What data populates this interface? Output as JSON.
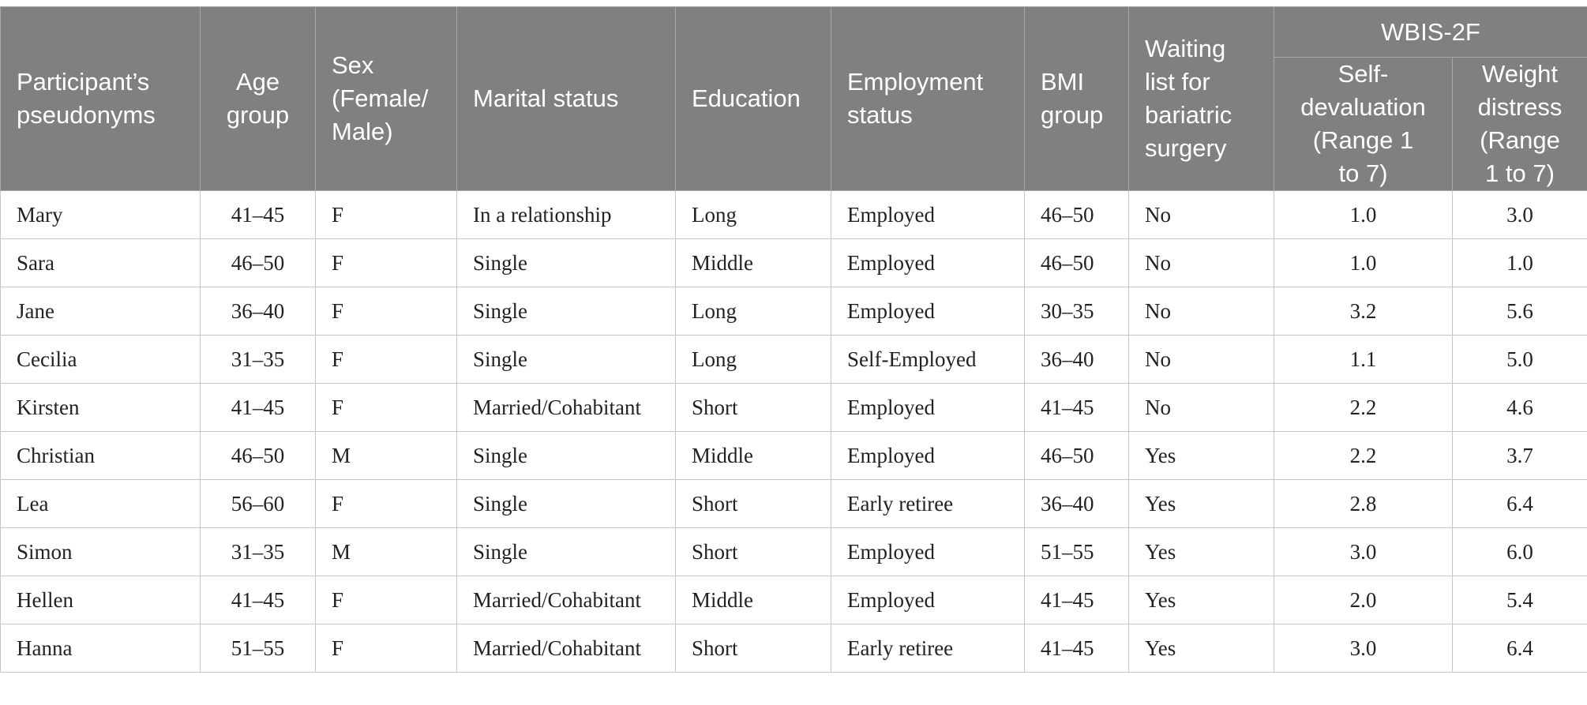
{
  "columns": {
    "pseudonym": "Participant’s pseudonyms",
    "age": "Age group",
    "sex": "Sex (Female/ Male)",
    "marital": "Marital status",
    "education": "Education",
    "employment": "Employment status",
    "bmi": "BMI group",
    "waiting": "Waiting list for bariatric surgery",
    "wbis_group": "WBIS-2F",
    "self_devaluation": "Self- devaluation (Range 1 to 7)",
    "weight_distress": "Weight distress (Range 1 to 7)"
  },
  "rows": [
    {
      "pseudonym": "Mary",
      "age": "41–45",
      "sex": "F",
      "marital": "In a relationship",
      "education": "Long",
      "employment": "Employed",
      "bmi": "46–50",
      "waiting": "No",
      "self_devaluation": "1.0",
      "weight_distress": "3.0"
    },
    {
      "pseudonym": "Sara",
      "age": "46–50",
      "sex": "F",
      "marital": "Single",
      "education": "Middle",
      "employment": "Employed",
      "bmi": "46–50",
      "waiting": "No",
      "self_devaluation": "1.0",
      "weight_distress": "1.0"
    },
    {
      "pseudonym": "Jane",
      "age": "36–40",
      "sex": "F",
      "marital": "Single",
      "education": "Long",
      "employment": "Employed",
      "bmi": "30–35",
      "waiting": "No",
      "self_devaluation": "3.2",
      "weight_distress": "5.6"
    },
    {
      "pseudonym": "Cecilia",
      "age": "31–35",
      "sex": "F",
      "marital": "Single",
      "education": "Long",
      "employment": "Self-Employed",
      "bmi": "36–40",
      "waiting": "No",
      "self_devaluation": "1.1",
      "weight_distress": "5.0"
    },
    {
      "pseudonym": "Kirsten",
      "age": "41–45",
      "sex": "F",
      "marital": "Married/Cohabitant",
      "education": "Short",
      "employment": "Employed",
      "bmi": "41–45",
      "waiting": "No",
      "self_devaluation": "2.2",
      "weight_distress": "4.6"
    },
    {
      "pseudonym": "Christian",
      "age": "46–50",
      "sex": "M",
      "marital": "Single",
      "education": "Middle",
      "employment": "Employed",
      "bmi": "46–50",
      "waiting": "Yes",
      "self_devaluation": "2.2",
      "weight_distress": "3.7"
    },
    {
      "pseudonym": "Lea",
      "age": "56–60",
      "sex": "F",
      "marital": "Single",
      "education": "Short",
      "employment": "Early retiree",
      "bmi": "36–40",
      "waiting": "Yes",
      "self_devaluation": "2.8",
      "weight_distress": "6.4"
    },
    {
      "pseudonym": "Simon",
      "age": "31–35",
      "sex": "M",
      "marital": "Single",
      "education": "Short",
      "employment": "Employed",
      "bmi": "51–55",
      "waiting": "Yes",
      "self_devaluation": "3.0",
      "weight_distress": "6.0"
    },
    {
      "pseudonym": "Hellen",
      "age": "41–45",
      "sex": "F",
      "marital": "Married/Cohabitant",
      "education": "Middle",
      "employment": "Employed",
      "bmi": "41–45",
      "waiting": "Yes",
      "self_devaluation": "2.0",
      "weight_distress": "5.4"
    },
    {
      "pseudonym": "Hanna",
      "age": "51–55",
      "sex": "F",
      "marital": "Married/Cohabitant",
      "education": "Short",
      "employment": "Early retiree",
      "bmi": "41–45",
      "waiting": "Yes",
      "self_devaluation": "3.0",
      "weight_distress": "6.4"
    }
  ]
}
